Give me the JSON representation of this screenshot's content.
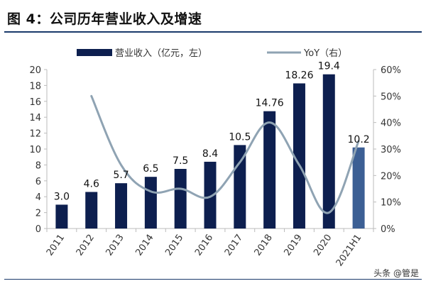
{
  "figure": {
    "title": "图 4：公司历年营业收入及增速",
    "watermark": "头条 @管是"
  },
  "chart_data": {
    "type": "bar",
    "title": "公司历年营业收入及增速",
    "categories": [
      "2011",
      "2012",
      "2013",
      "2014",
      "2015",
      "2016",
      "2017",
      "2018",
      "2019",
      "2020",
      "2021H1"
    ],
    "series": [
      {
        "name": "营业收入（亿元，左）",
        "type": "bar",
        "axis": "left",
        "values": [
          3.0,
          4.6,
          5.7,
          6.5,
          7.5,
          8.4,
          10.5,
          14.76,
          18.26,
          19.4,
          10.2
        ],
        "labels": [
          "3.0",
          "4.6",
          "5.7",
          "6.5",
          "7.5",
          "8.4",
          "10.5",
          "14.76",
          "18.26",
          "19.4",
          "10.2"
        ],
        "color": "#0d1f4f",
        "highlight_color": "#3c5f94"
      },
      {
        "name": "YoY（右）",
        "type": "line",
        "axis": "right",
        "values": [
          null,
          0.5,
          0.24,
          0.14,
          0.15,
          0.12,
          0.25,
          0.4,
          0.24,
          0.06,
          0.33
        ],
        "color": "#8fa3b3"
      }
    ],
    "y_left": {
      "min": 0,
      "max": 20,
      "ticks": [
        0,
        2,
        4,
        6,
        8,
        10,
        12,
        14,
        16,
        18,
        20
      ]
    },
    "y_right": {
      "min": 0,
      "max": 0.6,
      "ticks": [
        "0%",
        "10%",
        "20%",
        "30%",
        "40%",
        "50%",
        "60%"
      ]
    },
    "legend": "top",
    "grid": false
  }
}
